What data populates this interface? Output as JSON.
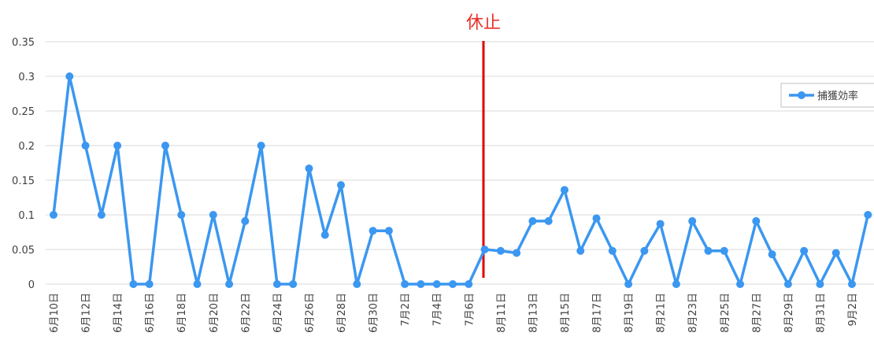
{
  "chart_data": {
    "type": "line",
    "annotation": "休止",
    "categories": [
      "6月10日",
      null,
      "6月12日",
      null,
      "6月14日",
      null,
      "6月16日",
      null,
      "6月18日",
      null,
      "6月20日",
      null,
      "6月22日",
      null,
      "6月24日",
      null,
      "6月26日",
      null,
      "6月28日",
      null,
      "6月30日",
      null,
      "7月2日",
      null,
      "7月4日",
      null,
      "7月6日",
      null,
      "8月11日",
      null,
      "8月13日",
      null,
      "8月15日",
      null,
      "8月17日",
      null,
      "8月19日",
      null,
      "8月21日",
      null,
      "8月23日",
      null,
      "8月25日",
      null,
      "8月27日",
      null,
      "8月29日",
      null,
      "8月31日",
      null,
      "9月2日",
      null
    ],
    "series": [
      {
        "name": "捕獲効率",
        "color": "#3b97f0",
        "values": [
          0.1,
          0.3,
          0.2,
          0.1,
          0.2,
          0,
          0,
          0.2,
          0.1,
          0,
          0.1,
          0,
          0.091,
          0.2,
          0,
          0,
          0.167,
          0.071,
          0.143,
          0,
          0.077,
          0.077,
          0,
          0,
          0,
          0,
          0,
          0.05,
          0.048,
          0.045,
          0.091,
          0.091,
          0.136,
          0.048,
          0.095,
          0.048,
          0,
          0.048,
          0.087,
          0,
          0.091,
          0.048,
          0.048,
          0,
          0.091,
          0.043,
          0,
          0.048,
          0,
          0.045,
          0,
          0.1
        ]
      }
    ],
    "ylim": [
      0,
      0.35
    ],
    "yticks": [
      0,
      0.05,
      0.1,
      0.15,
      0.2,
      0.25,
      0.3,
      0.35
    ],
    "grid": true,
    "legend": "right"
  }
}
